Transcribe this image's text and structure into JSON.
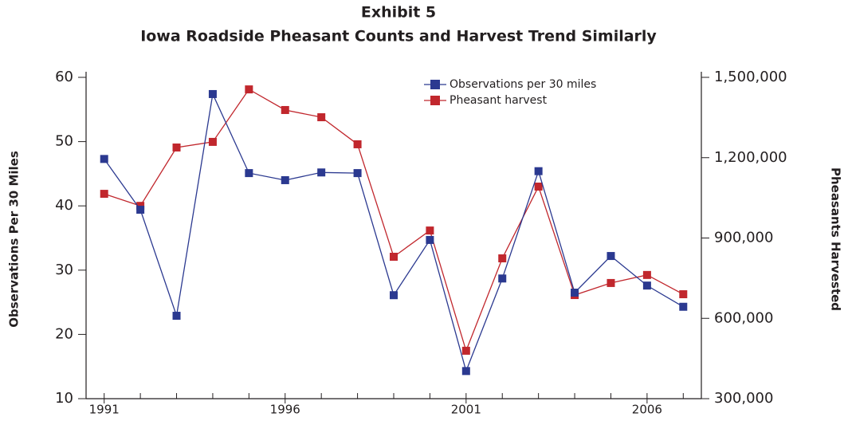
{
  "chart_data": {
    "type": "line",
    "title": "Exhibit 5",
    "subtitle": "Iowa Roadside Pheasant Counts and Harvest Trend Similarly",
    "y_label": "Observations Per 30 Miles",
    "y2_label": "Pheasants Harvested",
    "x": [
      1991,
      1992,
      1993,
      1994,
      1995,
      1996,
      1997,
      1998,
      1999,
      2000,
      2001,
      2002,
      2003,
      2004,
      2005,
      2006,
      2007
    ],
    "xlim": [
      1990.5,
      2007.5
    ],
    "xticks": [
      1991,
      1996,
      2001,
      2006
    ],
    "ylim": [
      10,
      60
    ],
    "yticks": [
      10,
      20,
      30,
      40,
      50,
      60
    ],
    "y2lim": [
      300000,
      1500000
    ],
    "y2ticks": [
      {
        "value": 300000,
        "label": "300,000"
      },
      {
        "value": 600000,
        "label": "600,000"
      },
      {
        "value": 900000,
        "label": "900,000"
      },
      {
        "value": 1200000,
        "label": "1,200,000"
      },
      {
        "value": 1500000,
        "label": "1,500,000"
      }
    ],
    "legend": "top-right",
    "series": [
      {
        "name": "Observations per 30 miles",
        "color": "#2b3990",
        "values": [
          47.3,
          39.4,
          22.9,
          57.4,
          45.1,
          44.0,
          45.2,
          45.1,
          26.1,
          34.7,
          14.3,
          28.7,
          45.4,
          26.5,
          32.2,
          27.6,
          24.3
        ]
      },
      {
        "name": "Pheasant harvest",
        "color": "#c1272d",
        "axis": "y2",
        "values": [
          1065000,
          1020000,
          1238000,
          1259000,
          1455000,
          1378000,
          1351000,
          1250000,
          830000,
          928000,
          479000,
          824000,
          1092000,
          687000,
          732000,
          762000,
          690000
        ]
      }
    ]
  }
}
